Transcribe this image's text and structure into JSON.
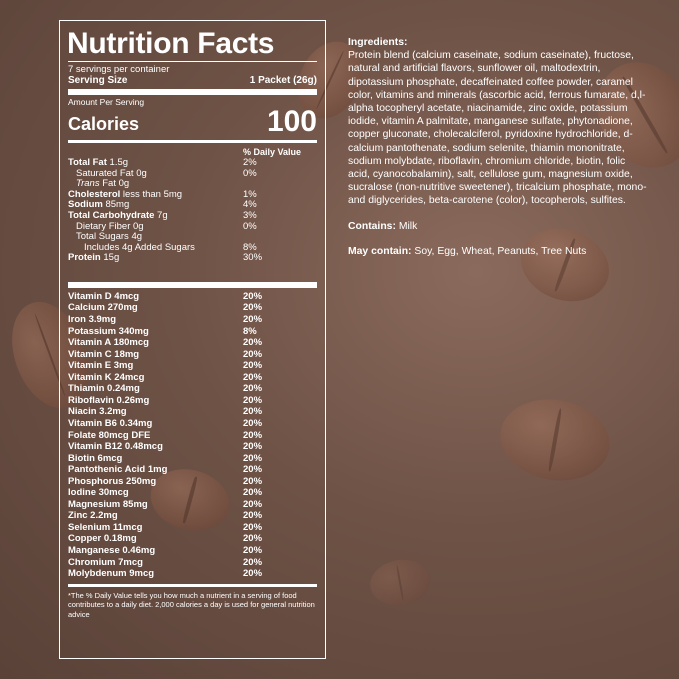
{
  "title": "Nutrition Facts",
  "servings_per_container": "7 servings per container",
  "serving_size_label": "Serving Size",
  "serving_size_value": "1 Packet (26g)",
  "amount_per_serving": "Amount Per Serving",
  "calories_label": "Calories",
  "calories_value": "100",
  "daily_value_header": "% Daily Value",
  "macros": [
    {
      "name": "Total Fat",
      "amount": "1.5g",
      "dv": "2%"
    },
    {
      "name": "Saturated Fat",
      "amount": "0g",
      "dv": "0%"
    },
    {
      "name": "Trans",
      "amount": "Fat 0g",
      "dv": ""
    },
    {
      "name": "Cholesterol",
      "amount": "less than 5mg",
      "dv": "1%"
    },
    {
      "name": "Sodium",
      "amount": "85mg",
      "dv": "4%"
    },
    {
      "name": "Total Carbohydrate",
      "amount": "7g",
      "dv": "3%"
    },
    {
      "name": "Dietary Fiber",
      "amount": "0g",
      "dv": "0%"
    },
    {
      "name": "Total Sugars",
      "amount": "4g",
      "dv": ""
    },
    {
      "name": "Includes 4g Added Sugars",
      "amount": "",
      "dv": "8%"
    },
    {
      "name": "Protein",
      "amount": "15g",
      "dv": "30%"
    }
  ],
  "vitamins": [
    {
      "name": "Vitamin D 4mcg",
      "dv": "20%"
    },
    {
      "name": "Calcium 270mg",
      "dv": "20%"
    },
    {
      "name": "Iron 3.9mg",
      "dv": "20%"
    },
    {
      "name": "Potassium 340mg",
      "dv": "8%"
    },
    {
      "name": "Vitamin A 180mcg",
      "dv": "20%"
    },
    {
      "name": "Vitamin C 18mg",
      "dv": "20%"
    },
    {
      "name": "Vitamin E 3mg",
      "dv": "20%"
    },
    {
      "name": "Vitamin K 24mcg",
      "dv": "20%"
    },
    {
      "name": "Thiamin 0.24mg",
      "dv": "20%"
    },
    {
      "name": "Riboflavin 0.26mg",
      "dv": "20%"
    },
    {
      "name": "Niacin 3.2mg",
      "dv": "20%"
    },
    {
      "name": "Vitamin B6 0.34mg",
      "dv": "20%"
    },
    {
      "name": "Folate 80mcg DFE",
      "dv": "20%"
    },
    {
      "name": "Vitamin B12 0.48mcg",
      "dv": "20%"
    },
    {
      "name": "Biotin 6mcg",
      "dv": "20%"
    },
    {
      "name": "Pantothenic Acid 1mg",
      "dv": "20%"
    },
    {
      "name": "Phosphorus 250mg",
      "dv": "20%"
    },
    {
      "name": "Iodine 30mcg",
      "dv": "20%"
    },
    {
      "name": "Magnesium 85mg",
      "dv": "20%"
    },
    {
      "name": "Zinc 2.2mg",
      "dv": "20%"
    },
    {
      "name": "Selenium 11mcg",
      "dv": "20%"
    },
    {
      "name": "Copper 0.18mg",
      "dv": "20%"
    },
    {
      "name": "Manganese 0.46mg",
      "dv": "20%"
    },
    {
      "name": "Chromium 7mcg",
      "dv": "20%"
    },
    {
      "name": "Molybdenum 9mcg",
      "dv": "20%"
    }
  ],
  "footnote": "*The % Daily Value tells you how much a nutrient in a serving of food contributes to a daily diet. 2,000 calories a day is used for general nutrition advice",
  "ingredients_label": "Ingredients:",
  "ingredients_text": "Protein blend (calcium caseinate, sodium caseinate), fructose, natural and artificial flavors, sunflower oil, maltodextrin, dipotassium phosphate, decaffeinated coffee powder, caramel color, vitamins and minerals (ascorbic acid, ferrous fumarate, d,l-alpha tocopheryl acetate, niacinamide, zinc oxide, potassium iodide, vitamin A palmitate, manganese sulfate, phytonadione, copper gluconate, cholecalciferol, pyridoxine hydrochloride, d-calcium pantothenate, sodium selenite, thiamin mononitrate, sodium molybdate, riboflavin, chromium chloride, biotin, folic acid, cyanocobalamin), salt, cellulose gum, magnesium oxide, sucralose (non-nutritive sweetener), tricalcium phosphate, mono- and diglycerides, beta-carotene (color), tocopherols, sulfites.",
  "contains_label": "Contains:",
  "contains_text": "Milk",
  "may_contain_label": "May contain:",
  "may_contain_text": "Soy, Egg, Wheat, Peanuts, Tree Nuts",
  "colors": {
    "text": "#ffffff",
    "background": "#6e5246",
    "bean": "#8a5a46"
  }
}
